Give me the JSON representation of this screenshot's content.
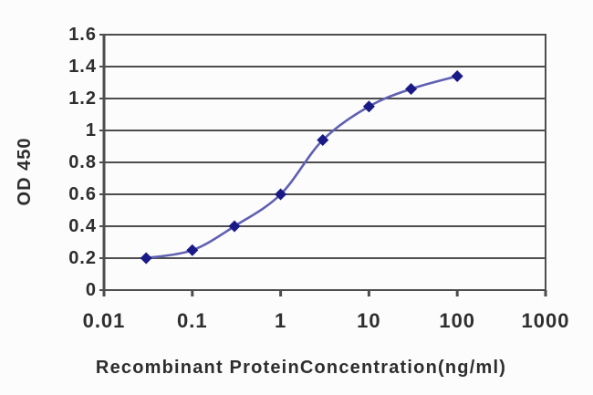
{
  "chart_data": {
    "type": "line",
    "title": "",
    "xlabel": "Recombinant ProteinConcentration(ng/ml)",
    "ylabel": "OD 450",
    "x_scale": "log",
    "y_scale": "linear",
    "xlim": [
      0.01,
      1000
    ],
    "ylim": [
      0,
      1.6
    ],
    "x": [
      0.03,
      0.1,
      0.3,
      1,
      3,
      10,
      30,
      100
    ],
    "y": [
      0.2,
      0.25,
      0.4,
      0.6,
      0.94,
      1.15,
      1.26,
      1.34
    ],
    "x_ticks": [
      "0.01",
      "0.1",
      "1",
      "10",
      "100",
      "1000"
    ],
    "x_tick_values": [
      0.01,
      0.1,
      1,
      10,
      100,
      1000
    ],
    "y_ticks": [
      "0",
      "0.2",
      "0.4",
      "0.6",
      "0.8",
      "1",
      "1.2",
      "1.4",
      "1.6"
    ],
    "y_tick_values": [
      0,
      0.2,
      0.4,
      0.6,
      0.8,
      1,
      1.2,
      1.4,
      1.6
    ],
    "grid": "horizontal",
    "legend": "none",
    "marker": "diamond",
    "line_color": "#6060b2",
    "marker_color": "#1a1a86",
    "grid_color": "#4d4d4d",
    "axis_color": "#4d4d4d",
    "text_color": "#2e2e2e",
    "background_color": "#fcfcfc"
  }
}
